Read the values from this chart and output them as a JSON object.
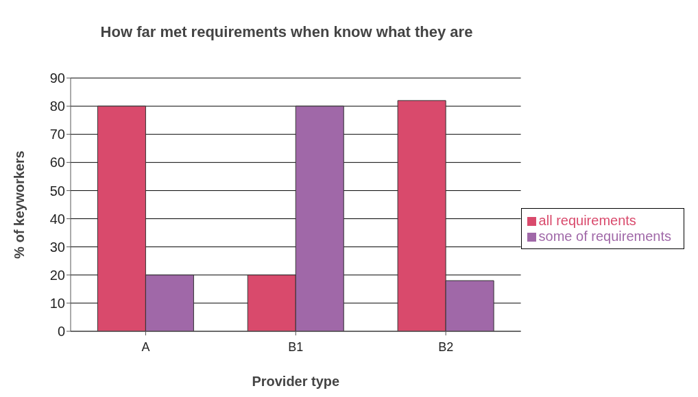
{
  "chart_data": {
    "type": "bar",
    "title": "How far met requirements when know what they are",
    "xlabel": "Provider type",
    "ylabel": "% of keyworkers",
    "categories": [
      "A",
      "B1",
      "B2"
    ],
    "series": [
      {
        "name": "all requirements",
        "color": "#d94a6c",
        "values": [
          80,
          20,
          82
        ]
      },
      {
        "name": "some of requirements",
        "color": "#a068a8",
        "values": [
          20,
          80,
          18
        ]
      }
    ],
    "ylim": [
      0,
      90
    ],
    "yticks": [
      0,
      10,
      20,
      30,
      40,
      50,
      60,
      70,
      80,
      90
    ],
    "grid": "y",
    "legend": "right"
  }
}
